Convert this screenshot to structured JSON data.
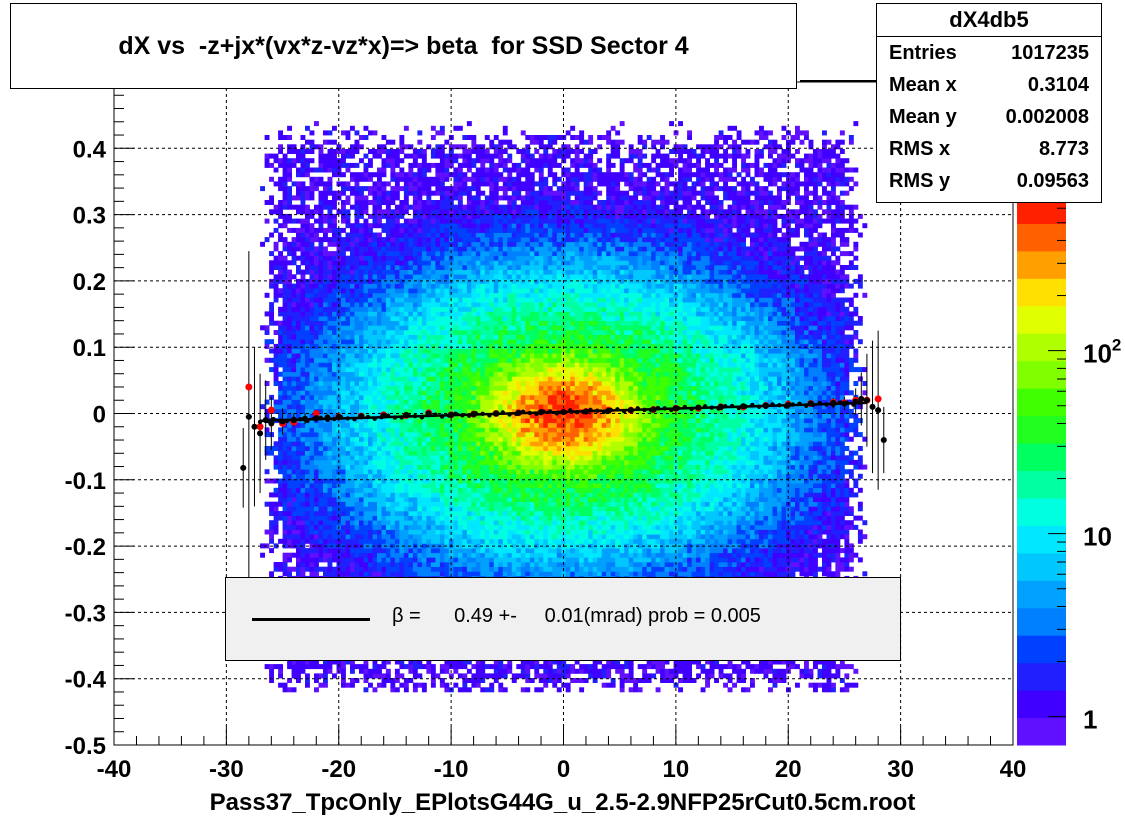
{
  "chart_data": {
    "type": "heatmap",
    "title": "dX vs  -z+jx*(vx*z-vz*x)=> beta  for SSD Sector 4",
    "xlabel": "Pass37_TpcOnly_EPlotsG44G_u_2.5-2.9NFP25rCut0.5cm.root",
    "ylabel": "",
    "xlim": [
      -40,
      40
    ],
    "ylim": [
      -0.5,
      0.5
    ],
    "grid": true,
    "x_ticks": [
      "-40",
      "-30",
      "-20",
      "-10",
      "0",
      "10",
      "20",
      "30",
      "40"
    ],
    "y_ticks": [
      "-0.5",
      "-0.4",
      "-0.3",
      "-0.2",
      "-0.1",
      "0",
      "0.1",
      "0.2",
      "0.3",
      "0.4"
    ],
    "colorbar": {
      "scale": "log",
      "range": [
        0.7,
        700
      ],
      "ticks": [
        {
          "value": 1,
          "label": "1"
        },
        {
          "value": 10,
          "label": "10"
        },
        {
          "value": 100,
          "label": "10",
          "sup": "2"
        }
      ]
    },
    "density": {
      "x_range": [
        -27,
        27
      ],
      "y_range": [
        -0.42,
        0.44
      ],
      "peak_x": 0,
      "peak_y": 0,
      "peak_count": 600
    },
    "profile_points": {
      "x": [
        -28.5,
        -28,
        -27.5,
        -27,
        -26.5,
        -26,
        -25,
        -24,
        -23,
        -22,
        -21,
        -20,
        -18,
        -16,
        -14,
        -12,
        -10,
        -8,
        -6,
        -4,
        -2,
        0,
        2,
        4,
        6,
        8,
        10,
        12,
        14,
        16,
        18,
        20,
        22,
        24,
        25,
        26,
        26.5,
        27,
        27.5,
        28,
        28.5
      ],
      "y": [
        -0.082,
        -0.005,
        -0.02,
        -0.03,
        -0.01,
        -0.015,
        -0.012,
        -0.01,
        -0.008,
        -0.007,
        -0.006,
        -0.005,
        -0.004,
        -0.003,
        -0.002,
        0.0,
        -0.002,
        -0.001,
        0.0,
        0.001,
        0.002,
        0.002,
        0.003,
        0.004,
        0.005,
        0.006,
        0.008,
        0.009,
        0.01,
        0.011,
        0.012,
        0.013,
        0.015,
        0.016,
        0.015,
        0.018,
        0.022,
        0.02,
        0.01,
        0.005,
        -0.04
      ],
      "yerr": [
        0.06,
        0.25,
        0.12,
        0.09,
        0.06,
        0.04,
        0.02,
        0.01,
        0.008,
        0.006,
        0.005,
        0.004,
        0.003,
        0.003,
        0.003,
        0.003,
        0.003,
        0.003,
        0.003,
        0.003,
        0.003,
        0.003,
        0.003,
        0.003,
        0.003,
        0.003,
        0.003,
        0.003,
        0.003,
        0.003,
        0.003,
        0.004,
        0.005,
        0.008,
        0.01,
        0.02,
        0.04,
        0.07,
        0.1,
        0.12,
        0.05
      ]
    },
    "fit_points": {
      "x": [
        -28,
        -27,
        -26,
        -25,
        -24,
        -22,
        -20,
        -18,
        -16,
        -14,
        -12,
        -10,
        -8,
        -6,
        -4,
        -2,
        0,
        2,
        4,
        6,
        8,
        10,
        12,
        14,
        16,
        18,
        20,
        22,
        24,
        25,
        26,
        27,
        28
      ],
      "y": [
        0.04,
        -0.02,
        0.005,
        -0.015,
        -0.013,
        0.0,
        -0.005,
        -0.004,
        -0.002,
        -0.003,
        0.001,
        -0.002,
        -0.001,
        0.0,
        0.001,
        0.002,
        0.003,
        0.003,
        0.005,
        0.005,
        0.006,
        0.008,
        0.008,
        0.01,
        0.01,
        0.012,
        0.014,
        0.015,
        0.017,
        0.016,
        0.02,
        0.02,
        0.022
      ]
    },
    "fit_line": {
      "x": [
        -27,
        27
      ],
      "y": [
        -0.011,
        0.016
      ]
    }
  },
  "stats": {
    "name": "dX4db5",
    "rows": [
      {
        "label": "Entries",
        "value": "1017235"
      },
      {
        "label": "Mean x",
        "value": "0.3104"
      },
      {
        "label": "Mean y",
        "value": "0.002008"
      },
      {
        "label": "RMS x",
        "value": "8.773"
      },
      {
        "label": "RMS y",
        "value": "0.09563"
      }
    ]
  },
  "legend": {
    "text": "β =      0.49 +-     0.01(mrad) prob = 0.005"
  },
  "colors": {
    "profile": "#000000",
    "fit_points": "#ff0000",
    "fit_line": "#000000",
    "legend_bg": "#f0f0f0"
  }
}
